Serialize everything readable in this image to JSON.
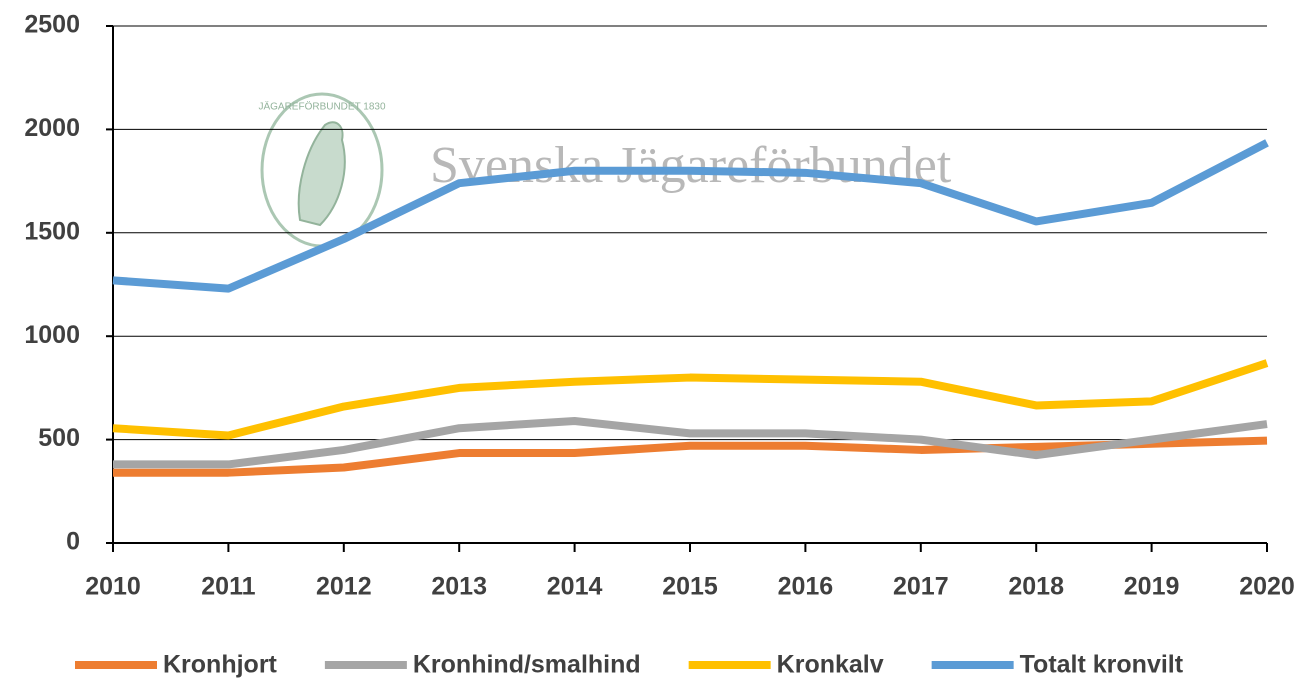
{
  "chart_data": {
    "type": "line",
    "watermark": "Svenska Jägareförbundet",
    "logo_text": "JÄGAREFÖRBUNDET 1830",
    "x": [
      2010,
      2011,
      2012,
      2013,
      2014,
      2015,
      2016,
      2017,
      2018,
      2019,
      2020
    ],
    "xlim": [
      2010,
      2020
    ],
    "xticks": [
      2010,
      2011,
      2012,
      2013,
      2014,
      2015,
      2016,
      2017,
      2018,
      2019,
      2020
    ],
    "ylim": [
      0,
      2500
    ],
    "yticks": [
      0,
      500,
      1000,
      1500,
      2000,
      2500
    ],
    "grid": true,
    "legend": "bottom",
    "series": [
      {
        "name": "Kronhjort",
        "color": "#ed7d31",
        "values": [
          340,
          340,
          365,
          435,
          435,
          470,
          470,
          450,
          465,
          480,
          495
        ]
      },
      {
        "name": "Kronhind/smalhind",
        "color": "#a5a5a5",
        "values": [
          380,
          380,
          450,
          555,
          590,
          530,
          530,
          500,
          425,
          500,
          575
        ]
      },
      {
        "name": "Kronkalv",
        "color": "#ffc000",
        "values": [
          555,
          520,
          660,
          750,
          780,
          800,
          790,
          780,
          665,
          685,
          870
        ]
      },
      {
        "name": "Totalt kronvilt",
        "color": "#5b9bd5",
        "values": [
          1270,
          1230,
          1470,
          1740,
          1800,
          1800,
          1790,
          1740,
          1555,
          1645,
          1935
        ]
      }
    ]
  }
}
